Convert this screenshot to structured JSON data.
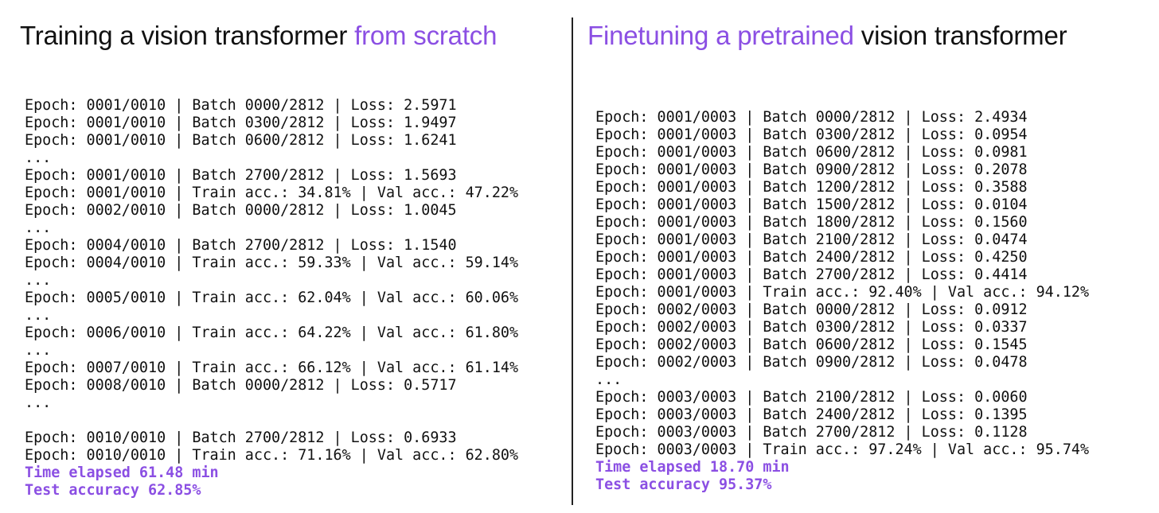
{
  "left": {
    "title": [
      "Training a vision transformer ",
      "from scratch"
    ],
    "log_blocks": [
      [
        "Epoch: 0001/0010 | Batch 0000/2812 | Loss: 2.5971",
        "Epoch: 0001/0010 | Batch 0300/2812 | Loss: 1.9497",
        "Epoch: 0001/0010 | Batch 0600/2812 | Loss: 1.6241",
        "...",
        "Epoch: 0001/0010 | Batch 2700/2812 | Loss: 1.5693",
        "Epoch: 0001/0010 | Train acc.: 34.81% | Val acc.: 47.22%",
        "Epoch: 0002/0010 | Batch 0000/2812 | Loss: 1.0045",
        "...",
        "Epoch: 0004/0010 | Batch 2700/2812 | Loss: 1.1540",
        "Epoch: 0004/0010 | Train acc.: 59.33% | Val acc.: 59.14%",
        "...",
        "Epoch: 0005/0010 | Train acc.: 62.04% | Val acc.: 60.06%",
        "...",
        "Epoch: 0006/0010 | Train acc.: 64.22% | Val acc.: 61.80%",
        "...",
        "Epoch: 0007/0010 | Train acc.: 66.12% | Val acc.: 61.14%",
        "Epoch: 0008/0010 | Batch 0000/2812 | Loss: 0.5717",
        "..."
      ],
      [
        "Epoch: 0010/0010 | Batch 2700/2812 | Loss: 0.6933",
        "Epoch: 0010/0010 | Train acc.: 71.16% | Val acc.: 62.80%"
      ]
    ],
    "summary": [
      "Time elapsed 61.48 min",
      "Test accuracy 62.85%"
    ]
  },
  "right": {
    "title": [
      "Finetuning a pretrained",
      " vision transformer"
    ],
    "log_blocks": [
      [
        "Epoch: 0001/0003 | Batch 0000/2812 | Loss: 2.4934",
        "Epoch: 0001/0003 | Batch 0300/2812 | Loss: 0.0954",
        "Epoch: 0001/0003 | Batch 0600/2812 | Loss: 0.0981",
        "Epoch: 0001/0003 | Batch 0900/2812 | Loss: 0.2078",
        "Epoch: 0001/0003 | Batch 1200/2812 | Loss: 0.3588",
        "Epoch: 0001/0003 | Batch 1500/2812 | Loss: 0.0104",
        "Epoch: 0001/0003 | Batch 1800/2812 | Loss: 0.1560",
        "Epoch: 0001/0003 | Batch 2100/2812 | Loss: 0.0474",
        "Epoch: 0001/0003 | Batch 2400/2812 | Loss: 0.4250",
        "Epoch: 0001/0003 | Batch 2700/2812 | Loss: 0.4414",
        "Epoch: 0001/0003 | Train acc.: 92.40% | Val acc.: 94.12%",
        "Epoch: 0002/0003 | Batch 0000/2812 | Loss: 0.0912",
        "Epoch: 0002/0003 | Batch 0300/2812 | Loss: 0.0337",
        "Epoch: 0002/0003 | Batch 0600/2812 | Loss: 0.1545",
        "Epoch: 0002/0003 | Batch 0900/2812 | Loss: 0.0478",
        "...",
        "Epoch: 0003/0003 | Batch 2100/2812 | Loss: 0.0060",
        "Epoch: 0003/0003 | Batch 2400/2812 | Loss: 0.1395",
        "Epoch: 0003/0003 | Batch 2700/2812 | Loss: 0.1128",
        "Epoch: 0003/0003 | Train acc.: 97.24% | Val acc.: 95.74%"
      ]
    ],
    "summary": [
      "Time elapsed 18.70 min",
      "Test accuracy 95.37%"
    ]
  }
}
